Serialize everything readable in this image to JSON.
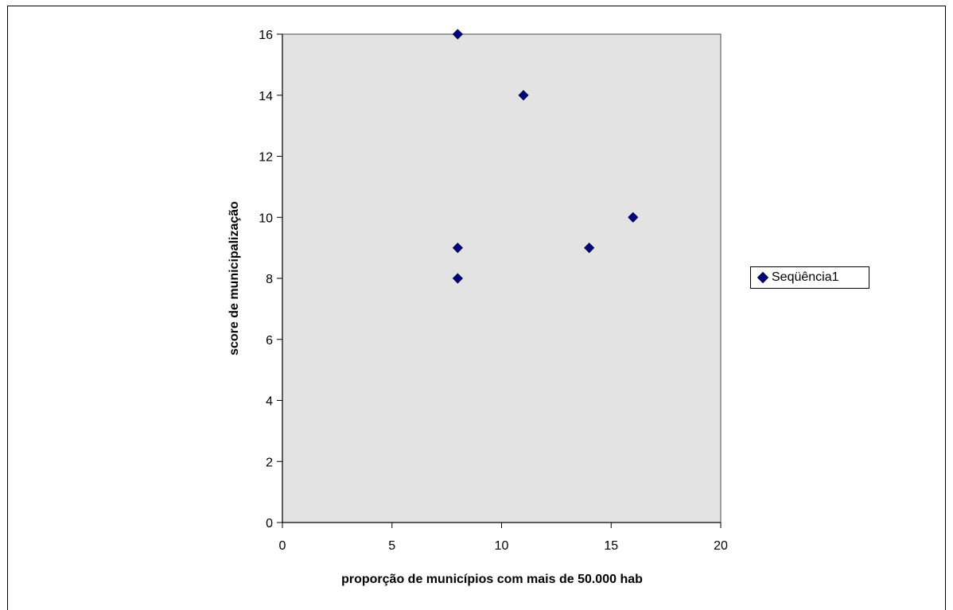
{
  "chart_data": {
    "type": "scatter",
    "xlabel": "proporção de municípios com mais de 50.000 hab",
    "ylabel": "score de municipalização",
    "xlim": [
      0,
      20
    ],
    "ylim": [
      0,
      16
    ],
    "x_ticks": [
      0,
      5,
      10,
      15,
      20
    ],
    "y_ticks": [
      0,
      2,
      4,
      6,
      8,
      10,
      12,
      14,
      16
    ],
    "grid": false,
    "plot_background": "#e3e3e3",
    "marker_color": "#000080",
    "legend_position": "right",
    "series": [
      {
        "name": "Seqüência1",
        "x": [
          8,
          11,
          8,
          8,
          14,
          16
        ],
        "y": [
          16,
          14,
          9,
          8,
          9,
          10
        ]
      }
    ]
  }
}
